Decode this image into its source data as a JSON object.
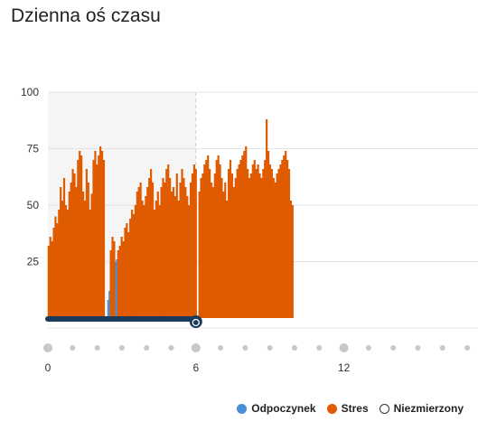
{
  "page": {
    "title": "Dzienna oś czasu"
  },
  "chart_data": {
    "type": "bar",
    "title": "Dzienna oś czasu",
    "xlabel": "",
    "ylabel": "",
    "ylim": [
      0,
      100
    ],
    "yticks": [
      25,
      50,
      75,
      100
    ],
    "xlim": [
      0,
      18
    ],
    "xticks": [
      0,
      6,
      12
    ],
    "grid": true,
    "legend_position": "bottom-right",
    "colors": {
      "rest": "#4a90d9",
      "stress": "#e05a00",
      "unmeasured": "#ffffff",
      "sleep_bar": "#1a3a5c",
      "shade": "#f5f5f5"
    },
    "sleep_window": [
      0,
      6
    ],
    "series": [
      {
        "name": "Odpoczynek",
        "key": "rest",
        "x": [
          2.45,
          2.5,
          2.55,
          2.6,
          2.65,
          2.7,
          2.75,
          2.8,
          2.85
        ],
        "values": [
          8,
          12,
          25,
          24,
          10,
          3,
          25,
          26,
          22
        ]
      },
      {
        "name": "Stres",
        "key": "stress",
        "x": [
          0.03,
          0.1,
          0.17,
          0.24,
          0.31,
          0.38,
          0.45,
          0.52,
          0.59,
          0.66,
          0.73,
          0.8,
          0.87,
          0.94,
          1.01,
          1.08,
          1.15,
          1.22,
          1.29,
          1.36,
          1.43,
          1.5,
          1.57,
          1.64,
          1.71,
          1.78,
          1.85,
          1.92,
          1.99,
          2.06,
          2.13,
          2.2,
          2.27,
          2.55,
          2.62,
          2.69,
          2.85,
          2.92,
          2.99,
          3.06,
          3.13,
          3.2,
          3.27,
          3.34,
          3.41,
          3.48,
          3.55,
          3.62,
          3.69,
          3.76,
          3.83,
          3.9,
          3.97,
          4.04,
          4.11,
          4.18,
          4.25,
          4.32,
          4.39,
          4.46,
          4.53,
          4.6,
          4.67,
          4.74,
          4.81,
          4.88,
          4.95,
          5.02,
          5.09,
          5.16,
          5.23,
          5.3,
          5.37,
          5.44,
          5.51,
          5.58,
          5.65,
          5.72,
          5.79,
          5.86,
          5.93,
          6.0,
          6.07,
          6.14,
          6.21,
          6.28,
          6.35,
          6.42,
          6.49,
          6.56,
          6.63,
          6.7,
          6.77,
          6.84,
          6.91,
          6.98,
          7.05,
          7.12,
          7.19,
          7.26,
          7.33,
          7.4,
          7.47,
          7.54,
          7.61,
          7.68,
          7.75,
          7.82,
          7.89,
          7.96,
          8.03,
          8.1,
          8.17,
          8.24,
          8.31,
          8.38,
          8.45,
          8.52,
          8.59,
          8.66,
          8.73,
          8.8,
          8.87,
          8.94,
          9.01,
          9.08,
          9.15,
          9.22,
          9.29,
          9.36,
          9.43,
          9.5,
          9.57,
          9.64,
          9.71,
          9.78,
          9.85,
          9.92
        ],
        "values": [
          32,
          36,
          34,
          40,
          45,
          42,
          48,
          58,
          52,
          62,
          50,
          48,
          56,
          60,
          66,
          64,
          58,
          70,
          74,
          72,
          56,
          52,
          66,
          60,
          48,
          55,
          70,
          74,
          68,
          72,
          76,
          74,
          70,
          30,
          36,
          34,
          30,
          32,
          36,
          34,
          40,
          42,
          38,
          44,
          48,
          46,
          50,
          56,
          58,
          60,
          52,
          50,
          54,
          58,
          62,
          66,
          60,
          48,
          52,
          56,
          50,
          58,
          62,
          60,
          66,
          68,
          62,
          56,
          58,
          54,
          64,
          52,
          60,
          66,
          62,
          58,
          54,
          50,
          60,
          64,
          68,
          66,
          0,
          56,
          62,
          64,
          68,
          70,
          72,
          66,
          60,
          58,
          64,
          70,
          72,
          68,
          62,
          56,
          60,
          52,
          66,
          70,
          64,
          58,
          62,
          66,
          68,
          70,
          72,
          74,
          76,
          66,
          62,
          64,
          68,
          70,
          66,
          68,
          64,
          62,
          66,
          70,
          88,
          74,
          68,
          66,
          62,
          60,
          64,
          66,
          68,
          70,
          72,
          74,
          70,
          66,
          52,
          50
        ]
      },
      {
        "name": "Niezmierzony",
        "key": "unmeasured",
        "x": [],
        "values": []
      }
    ]
  }
}
